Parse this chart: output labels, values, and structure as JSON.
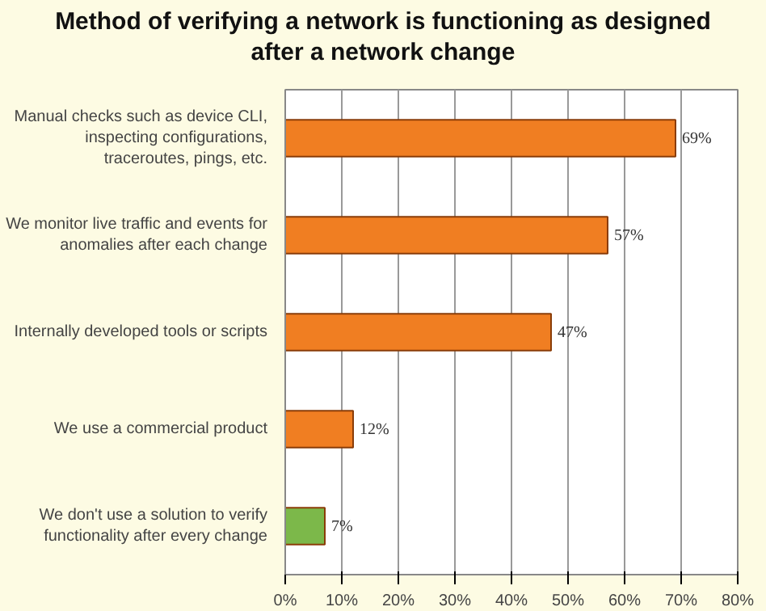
{
  "chart_data": {
    "type": "bar",
    "orientation": "horizontal",
    "title": "Method of verifying a network is functioning as designed after a network change",
    "categories": [
      "Manual checks such as device CLI, inspecting configurations, traceroutes, pings, etc.",
      "We monitor live traffic and events for anomalies after each change",
      "Internally developed tools or scripts",
      "We use a commercial product",
      "We don't use a solution to verify functionality after every change"
    ],
    "values": [
      69,
      57,
      47,
      12,
      7
    ],
    "colors": [
      "#f07e22",
      "#f07e22",
      "#f07e22",
      "#f07e22",
      "#7cb84a"
    ],
    "value_labels": [
      "69%",
      "57%",
      "47%",
      "12%",
      "7%"
    ],
    "xlim": [
      0,
      80
    ],
    "xticks": [
      {
        "value": 0,
        "label": "0%"
      },
      {
        "value": 10,
        "label": "10%"
      },
      {
        "value": 20,
        "label": "20%"
      },
      {
        "value": 30,
        "label": "30%"
      },
      {
        "value": 40,
        "label": "40%"
      },
      {
        "value": 50,
        "label": "50%"
      },
      {
        "value": 60,
        "label": "60%"
      },
      {
        "value": 70,
        "label": "70%"
      },
      {
        "value": 80,
        "label": "80%"
      }
    ],
    "grid": "x",
    "legend": false
  }
}
